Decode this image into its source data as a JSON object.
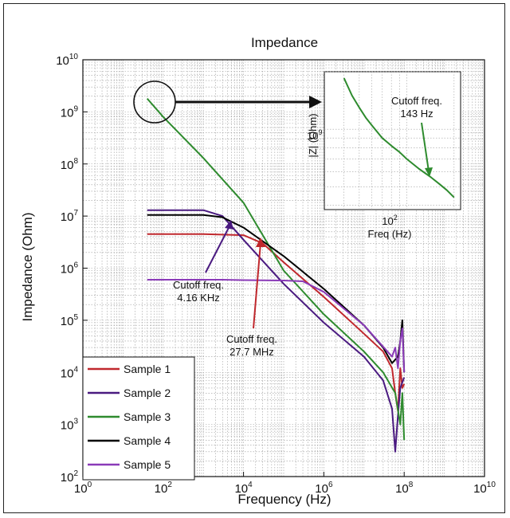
{
  "chart_data": {
    "type": "line",
    "title": "Impedance",
    "xlabel": "Frequency (Hz)",
    "ylabel": "Impedance (Ohm)",
    "x_scale": "log",
    "y_scale": "log",
    "xlim": [
      1,
      10000000000
    ],
    "ylim": [
      100,
      10000000000
    ],
    "grid": true,
    "legend_position": "bottom-left",
    "x_ticks": [
      {
        "base": "10",
        "exp": "0",
        "value": 1
      },
      {
        "base": "10",
        "exp": "2",
        "value": 100
      },
      {
        "base": "10",
        "exp": "4",
        "value": 10000
      },
      {
        "base": "10",
        "exp": "6",
        "value": 1000000
      },
      {
        "base": "10",
        "exp": "8",
        "value": 100000000
      },
      {
        "base": "10",
        "exp": "10",
        "value": 10000000000
      }
    ],
    "y_ticks": [
      {
        "base": "10",
        "exp": "2",
        "value": 100
      },
      {
        "base": "10",
        "exp": "3",
        "value": 1000
      },
      {
        "base": "10",
        "exp": "4",
        "value": 10000
      },
      {
        "base": "10",
        "exp": "5",
        "value": 100000
      },
      {
        "base": "10",
        "exp": "6",
        "value": 1000000
      },
      {
        "base": "10",
        "exp": "7",
        "value": 10000000
      },
      {
        "base": "10",
        "exp": "8",
        "value": 100000000
      },
      {
        "base": "10",
        "exp": "9",
        "value": 1000000000
      },
      {
        "base": "10",
        "exp": "10",
        "value": 10000000000
      }
    ],
    "series": [
      {
        "name": "Sample 1",
        "color": "#c0282d",
        "x": [
          40,
          1000,
          10000,
          30000,
          100000,
          1000000,
          10000000,
          30000000,
          50000000,
          60000000,
          70000000,
          80000000,
          90000000,
          100000000
        ],
        "y": [
          4500000,
          4500000,
          4300000,
          3000000,
          1300000,
          280000,
          55000,
          25000,
          12000,
          4000,
          1800,
          12000,
          5000,
          6000
        ]
      },
      {
        "name": "Sample 2",
        "color": "#4a1a80",
        "x": [
          40,
          1000,
          3000,
          10000,
          100000,
          1000000,
          10000000,
          30000000,
          50000000,
          60000000,
          70000000,
          80000000,
          100000000
        ],
        "y": [
          13000000,
          13000000,
          10000000,
          3500000,
          500000,
          90000,
          20000,
          7000,
          2000,
          300,
          1500,
          5000,
          8000
        ]
      },
      {
        "name": "Sample 3",
        "color": "#2e8b2e",
        "x": [
          40,
          100,
          1000,
          10000,
          100000,
          1000000,
          10000000,
          30000000,
          60000000,
          80000000,
          90000000,
          100000000
        ],
        "y": [
          1800000000,
          800000000,
          130000000,
          18000000,
          900000,
          130000,
          25000,
          10000,
          4000,
          1000,
          4000,
          500
        ]
      },
      {
        "name": "Sample 4",
        "color": "#000000",
        "x": [
          40,
          1000,
          3000,
          10000,
          100000,
          1000000,
          10000000,
          30000000,
          50000000,
          70000000,
          80000000,
          90000000,
          100000000
        ],
        "y": [
          10500000,
          10500000,
          9500000,
          6000000,
          1700000,
          400000,
          80000,
          30000,
          15000,
          20000,
          40000,
          100000,
          10000
        ]
      },
      {
        "name": "Sample 5",
        "color": "#8a3ab8",
        "x": [
          40,
          3000,
          10000,
          100000,
          300000,
          1000000,
          10000000,
          50000000,
          60000000,
          70000000,
          80000000,
          90000000,
          100000000
        ],
        "y": [
          600000,
          600000,
          590000,
          580000,
          560000,
          350000,
          80000,
          20000,
          30000,
          12000,
          40000,
          70000,
          10000
        ]
      }
    ],
    "annotations": [
      {
        "text": "Cutoff freq.\n4.16 KHz",
        "color": "#4a1a80"
      },
      {
        "text": "Cutoff freq.\n27.7 MHz",
        "color": "#c0282d"
      }
    ],
    "inset": {
      "xlabel": "Freq (Hz)",
      "ylabel": "|Z| (Ohm)",
      "x_tick": {
        "base": "10",
        "exp": "2"
      },
      "y_tick": {
        "base": "10",
        "exp": "9"
      },
      "annotation": "Cutoff freq.\n143 Hz",
      "series_color": "#2e8b2e",
      "x": [
        40,
        45,
        50,
        55,
        60,
        70,
        80,
        90,
        100,
        120,
        143,
        160,
        180,
        200
      ],
      "y": [
        1850000000,
        1500000000,
        1300000000,
        1150000000,
        1050000000,
        900000000,
        820000000,
        760000000,
        700000000,
        620000000,
        560000000,
        520000000,
        480000000,
        440000000
      ]
    }
  }
}
